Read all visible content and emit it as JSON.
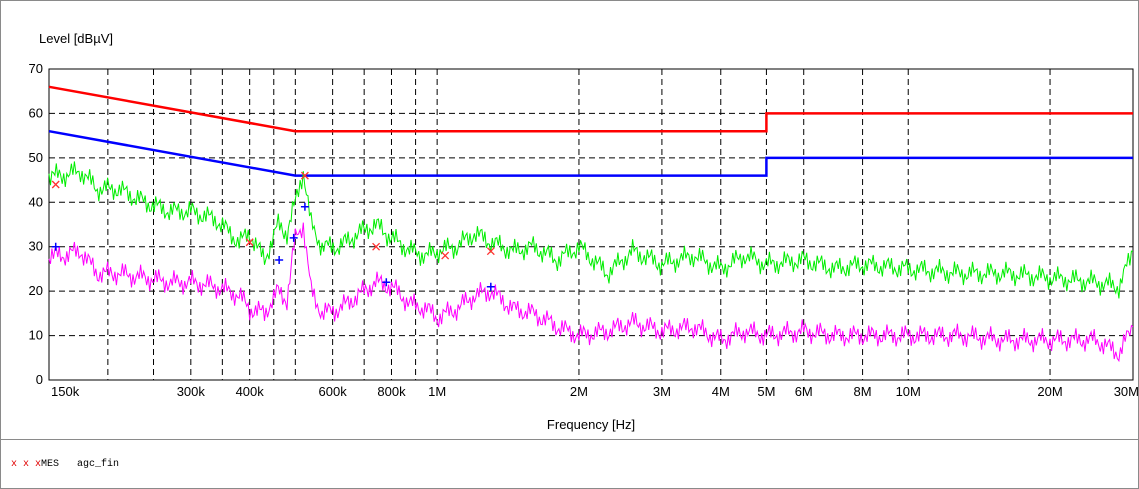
{
  "chart_data": {
    "type": "line",
    "ylabel": "Level [dBµV]",
    "xlabel": "Frequency [Hz]",
    "x_scale": "log",
    "xlim": [
      150000,
      30000000
    ],
    "ylim": [
      0,
      70
    ],
    "grid": true,
    "y_ticks": [
      0,
      10,
      20,
      30,
      40,
      50,
      60,
      70
    ],
    "x_ticks": [
      {
        "value": 150000,
        "label": "150k"
      },
      {
        "value": 300000,
        "label": "300k"
      },
      {
        "value": 400000,
        "label": "400k"
      },
      {
        "value": 600000,
        "label": "600k"
      },
      {
        "value": 800000,
        "label": "800k"
      },
      {
        "value": 1000000,
        "label": "1M"
      },
      {
        "value": 2000000,
        "label": "2M"
      },
      {
        "value": 3000000,
        "label": "3M"
      },
      {
        "value": 4000000,
        "label": "4M"
      },
      {
        "value": 5000000,
        "label": "5M"
      },
      {
        "value": 6000000,
        "label": "6M"
      },
      {
        "value": 8000000,
        "label": "8M"
      },
      {
        "value": 10000000,
        "label": "10M"
      },
      {
        "value": 20000000,
        "label": "20M"
      },
      {
        "value": 30000000,
        "label": "30M"
      }
    ],
    "x_minor_grid": [
      200000,
      250000,
      350000,
      450000,
      500000,
      700000,
      900000
    ],
    "series": [
      {
        "color": "#ff0000",
        "x": [
          150000,
          500000,
          500000,
          5000000,
          5000000,
          30000000
        ],
        "y": [
          66,
          56,
          56,
          56,
          60,
          60
        ]
      },
      {
        "color": "#0000ff",
        "x": [
          150000,
          500000,
          500000,
          5000000,
          5000000,
          30000000
        ],
        "y": [
          56,
          46,
          46,
          46,
          50,
          50
        ]
      },
      {
        "color": "#00ee00",
        "x": [
          150000,
          160000,
          175000,
          190000,
          210000,
          240000,
          270000,
          300000,
          340000,
          380000,
          400000,
          430000,
          460000,
          480000,
          500000,
          520000,
          540000,
          570000,
          620000,
          680000,
          740000,
          800000,
          880000,
          950000,
          1000000,
          1100000,
          1200000,
          1300000,
          1450000,
          1600000,
          1800000,
          2000000,
          2300000,
          2600000,
          3000000,
          3500000,
          4000000,
          4500000,
          5000000,
          6000000,
          7000000,
          8000000,
          10000000,
          13000000,
          16000000,
          20000000,
          25000000,
          28000000,
          30000000
        ],
        "y": [
          46,
          46,
          47,
          43,
          43,
          40,
          38,
          38,
          36,
          31,
          33,
          27,
          35,
          33,
          40,
          47,
          35,
          30,
          30,
          33,
          35,
          32,
          29,
          28,
          29,
          30,
          33,
          31,
          29,
          30,
          27,
          30,
          24,
          29,
          26,
          28,
          25,
          28,
          26,
          27,
          25,
          26,
          25,
          24,
          24,
          23,
          22,
          21,
          29
        ]
      },
      {
        "color": "#ff00ff",
        "x": [
          150000,
          160000,
          175000,
          190000,
          210000,
          240000,
          270000,
          300000,
          340000,
          380000,
          400000,
          430000,
          460000,
          480000,
          500000,
          520000,
          540000,
          570000,
          620000,
          680000,
          740000,
          800000,
          880000,
          950000,
          1000000,
          1100000,
          1200000,
          1300000,
          1450000,
          1600000,
          1800000,
          2000000,
          2300000,
          2600000,
          3000000,
          3500000,
          4000000,
          4500000,
          5000000,
          6000000,
          7000000,
          8000000,
          10000000,
          13000000,
          16000000,
          20000000,
          25000000,
          28000000,
          30000000
        ],
        "y": [
          28,
          28,
          29,
          24,
          24,
          23,
          22,
          22,
          21,
          19,
          16,
          15,
          20,
          18,
          32,
          35,
          20,
          15,
          16,
          19,
          22,
          21,
          17,
          16,
          14,
          16,
          19,
          20,
          16,
          15,
          12,
          10,
          11,
          13,
          11,
          12,
          9,
          11,
          10,
          11,
          10,
          10,
          10,
          10,
          9,
          9,
          9,
          6,
          12
        ]
      }
    ],
    "markers_x": {
      "color": "#ff3030",
      "points": [
        {
          "x": 155000,
          "y": 44
        },
        {
          "x": 400000,
          "y": 31
        },
        {
          "x": 524000,
          "y": 46
        },
        {
          "x": 742000,
          "y": 30
        },
        {
          "x": 1040000,
          "y": 28
        },
        {
          "x": 1300000,
          "y": 29
        }
      ]
    },
    "markers_plus": {
      "color": "#0000ff",
      "points": [
        {
          "x": 155000,
          "y": 30
        },
        {
          "x": 462000,
          "y": 27
        },
        {
          "x": 496000,
          "y": 32
        },
        {
          "x": 524000,
          "y": 39
        },
        {
          "x": 780000,
          "y": 22
        },
        {
          "x": 1300000,
          "y": 21
        }
      ]
    }
  },
  "legend": {
    "markers": "x x x",
    "mes_label": "MES",
    "name": "agc_fin"
  }
}
